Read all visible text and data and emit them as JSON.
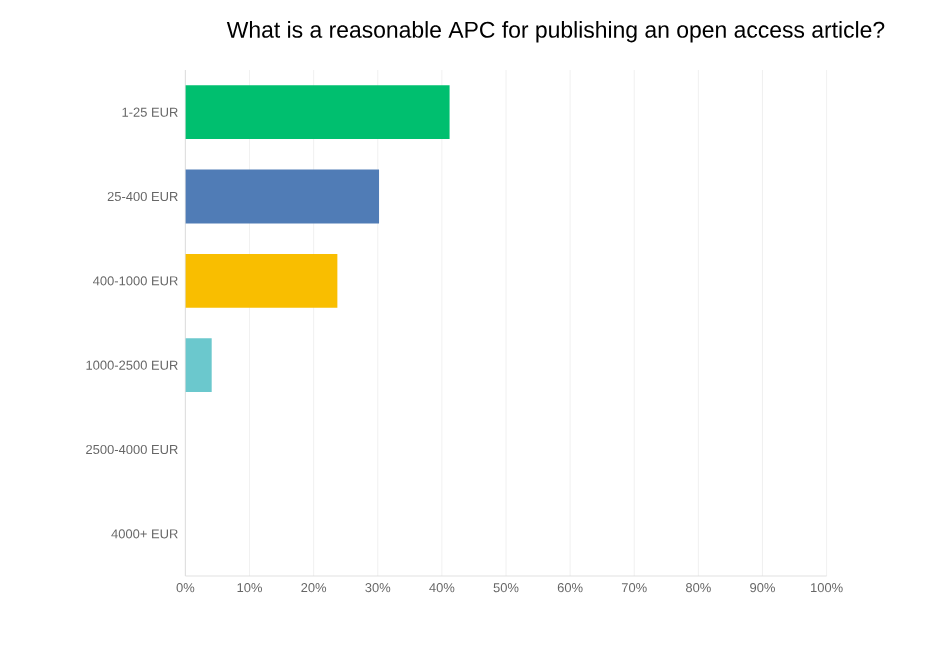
{
  "chart_data": {
    "type": "bar",
    "orientation": "horizontal",
    "title": "What is a reasonable APC for publishing an open access article?",
    "categories": [
      "1-25 EUR",
      "25-400 EUR",
      "400-1000 EUR",
      "1000-2500 EUR",
      "2500-4000 EUR",
      "4000+ EUR"
    ],
    "values": [
      41.2,
      30.2,
      23.7,
      4.1,
      0,
      0
    ],
    "colors": [
      "#00bf6f",
      "#507cb6",
      "#f9be00",
      "#6bc8cd",
      "#dddddd",
      "#dddddd"
    ],
    "xlim": [
      0,
      100
    ],
    "xticks": [
      {
        "value": 0,
        "label": "0%"
      },
      {
        "value": 10,
        "label": "10%"
      },
      {
        "value": 20,
        "label": "20%"
      },
      {
        "value": 30,
        "label": "30%"
      },
      {
        "value": 40,
        "label": "40%"
      },
      {
        "value": 50,
        "label": "50%"
      },
      {
        "value": 60,
        "label": "60%"
      },
      {
        "value": 70,
        "label": "70%"
      },
      {
        "value": 80,
        "label": "80%"
      },
      {
        "value": 90,
        "label": "90%"
      },
      {
        "value": 100,
        "label": "100%"
      }
    ],
    "grid": "x"
  }
}
